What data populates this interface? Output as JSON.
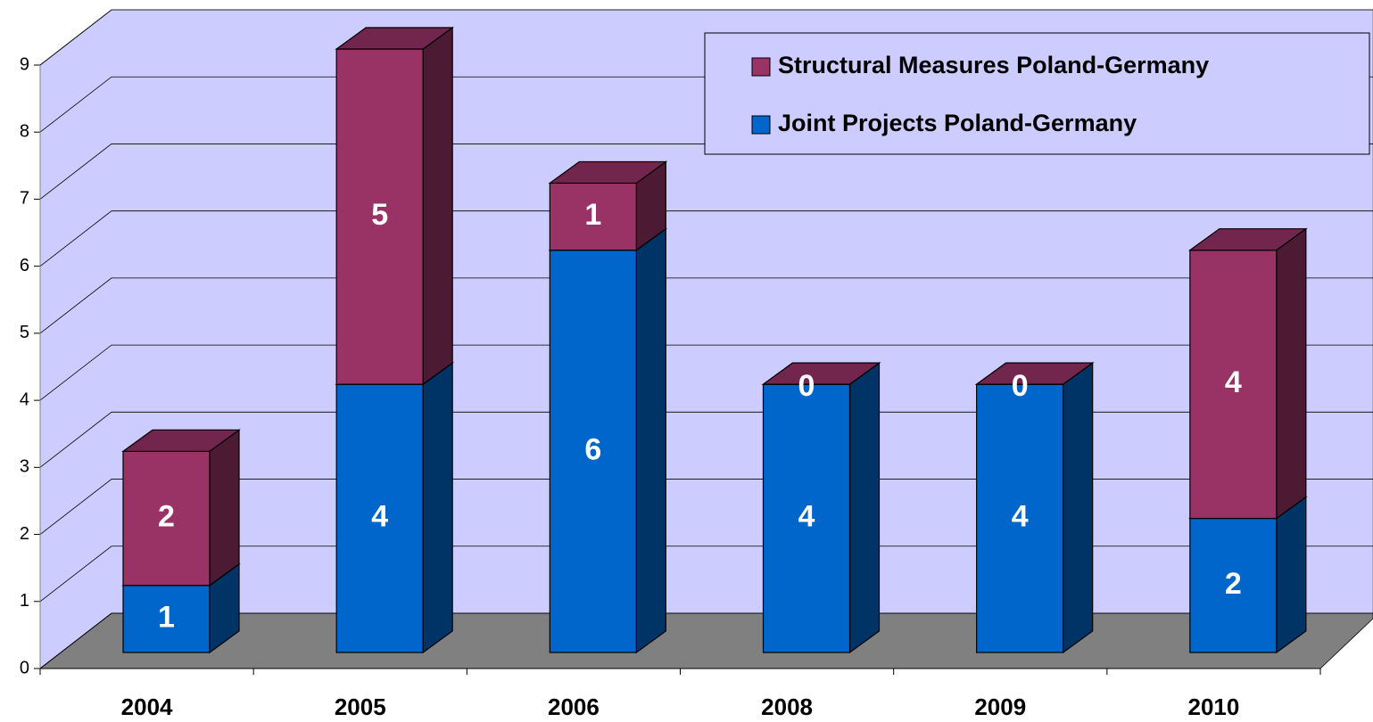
{
  "chart_data": {
    "type": "bar",
    "stacked": true,
    "categories": [
      "2004",
      "2005",
      "2006",
      "2008",
      "2009",
      "2010"
    ],
    "series": [
      {
        "name": "Joint Projects Poland-Germany",
        "color": "#0066cc",
        "values": [
          1,
          4,
          6,
          4,
          4,
          2
        ]
      },
      {
        "name": "Structural Measures Poland-Germany",
        "color": "#993366",
        "values": [
          2,
          5,
          1,
          0,
          0,
          4
        ]
      }
    ],
    "ylim": [
      0,
      9
    ],
    "yticks": [
      0,
      1,
      2,
      3,
      4,
      5,
      6,
      7,
      8,
      9
    ],
    "grid": true,
    "legend": "upper right",
    "wall_color": "#ccccff",
    "floor_color": "#808080"
  }
}
